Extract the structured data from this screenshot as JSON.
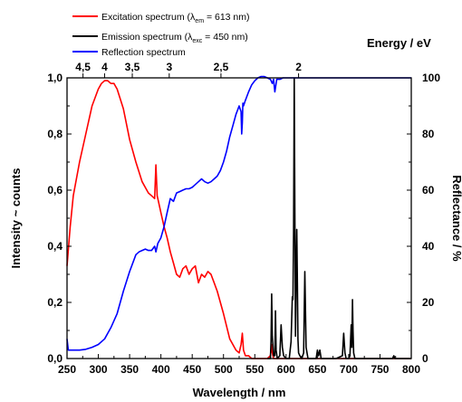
{
  "chart_data": {
    "type": "line",
    "xlabel": "Wavelength / nm",
    "ylabel_left": "Intensity ~ counts",
    "ylabel_right": "Reflectance / %",
    "top_axis_label": "Energy / eV",
    "xlim": [
      250,
      800
    ],
    "ylim_left": [
      0,
      1.0
    ],
    "ylim_right": [
      0,
      100
    ],
    "x_ticks": [
      "250",
      "300",
      "350",
      "400",
      "450",
      "500",
      "550",
      "600",
      "650",
      "700",
      "750",
      "800"
    ],
    "x_tick_values": [
      250,
      300,
      350,
      400,
      450,
      500,
      550,
      600,
      650,
      700,
      750,
      800
    ],
    "y_left_ticks": [
      "0,0",
      "0,2",
      "0,4",
      "0,6",
      "0,8",
      "1,0"
    ],
    "y_left_tick_values": [
      0,
      0.2,
      0.4,
      0.6,
      0.8,
      1.0
    ],
    "y_right_ticks": [
      "0",
      "20",
      "40",
      "60",
      "80",
      "100"
    ],
    "y_right_tick_values": [
      0,
      20,
      40,
      60,
      80,
      100
    ],
    "top_ticks": [
      {
        "label": "4,5",
        "ev": 4.5
      },
      {
        "label": "4",
        "ev": 4
      },
      {
        "label": "3,5",
        "ev": 3.5
      },
      {
        "label": "3",
        "ev": 3
      },
      {
        "label": "2,5",
        "ev": 2.5
      },
      {
        "label": "2",
        "ev": 2
      }
    ],
    "grid": false,
    "legend_position": "top-left",
    "series": [
      {
        "name": "Excitation spectrum (λem = 613 nm)",
        "legend_main": "Excitation spectrum (λ",
        "legend_sub": "em",
        "legend_tail": " = 613 nm)",
        "color": "#ff0000",
        "axis": "left",
        "x": [
          250,
          255,
          260,
          270,
          280,
          290,
          300,
          305,
          310,
          315,
          320,
          325,
          330,
          340,
          350,
          360,
          370,
          380,
          385,
          390,
          392,
          394,
          396,
          400,
          405,
          410,
          415,
          420,
          425,
          430,
          435,
          440,
          445,
          450,
          455,
          460,
          465,
          470,
          475,
          480,
          485,
          490,
          500,
          510,
          520,
          525,
          528,
          530,
          532,
          535,
          540,
          545,
          550,
          560,
          570,
          575,
          577,
          578,
          580,
          585,
          590,
          600,
          650,
          700,
          750,
          800
        ],
        "y": [
          0.33,
          0.47,
          0.58,
          0.7,
          0.8,
          0.9,
          0.96,
          0.98,
          0.99,
          0.99,
          0.98,
          0.98,
          0.96,
          0.89,
          0.78,
          0.7,
          0.63,
          0.59,
          0.58,
          0.57,
          0.69,
          0.58,
          0.56,
          0.52,
          0.47,
          0.43,
          0.38,
          0.34,
          0.3,
          0.29,
          0.32,
          0.33,
          0.3,
          0.32,
          0.33,
          0.27,
          0.3,
          0.29,
          0.31,
          0.3,
          0.27,
          0.24,
          0.16,
          0.07,
          0.03,
          0.02,
          0.05,
          0.09,
          0.03,
          0.01,
          0.01,
          0.0,
          0.0,
          0.0,
          0.0,
          0.01,
          0.05,
          0.02,
          0.0,
          0.0,
          0.0,
          0.0,
          0.0,
          0.0,
          0.0,
          0.0
        ]
      },
      {
        "name": "Emission spectrum (λexc = 450 nm)",
        "legend_main": "Emission spectrum (λ",
        "legend_sub": "exc",
        "legend_tail": " = 450 nm)",
        "color": "#000000",
        "axis": "left",
        "x": [
          570,
          575,
          576,
          577,
          578,
          580,
          582,
          583,
          584,
          586,
          590,
          592,
          594,
          596,
          600,
          605,
          608,
          610,
          611,
          612,
          613,
          614,
          615,
          616,
          617,
          618,
          619,
          620,
          622,
          625,
          628,
          630,
          632,
          635,
          640,
          648,
          650,
          652,
          654,
          656,
          660,
          680,
          690,
          692,
          694,
          696,
          700,
          702,
          704,
          705,
          706,
          707,
          708,
          710,
          720,
          740,
          770,
          772,
          774,
          780,
          800
        ],
        "y": [
          0.0,
          0.0,
          0.06,
          0.23,
          0.08,
          0.01,
          0.01,
          0.17,
          0.03,
          0.0,
          0.01,
          0.12,
          0.04,
          0.01,
          0.0,
          0.0,
          0.06,
          0.22,
          0.21,
          0.45,
          1.0,
          0.52,
          0.08,
          0.28,
          0.46,
          0.27,
          0.07,
          0.02,
          0.01,
          0.0,
          0.02,
          0.31,
          0.04,
          0.0,
          0.0,
          0.0,
          0.03,
          0.01,
          0.03,
          0.0,
          0.0,
          0.0,
          0.01,
          0.09,
          0.02,
          0.0,
          0.0,
          0.01,
          0.12,
          0.04,
          0.21,
          0.1,
          0.02,
          0.0,
          0.0,
          0.0,
          0.0,
          0.01,
          0.0,
          0.0,
          0.0
        ]
      },
      {
        "name": "Reflection spectrum",
        "color": "#0000ff",
        "axis": "right",
        "x": [
          250,
          252,
          255,
          260,
          270,
          280,
          290,
          300,
          310,
          320,
          330,
          340,
          350,
          360,
          365,
          370,
          375,
          380,
          385,
          390,
          392,
          395,
          400,
          405,
          410,
          415,
          420,
          425,
          430,
          435,
          440,
          445,
          450,
          455,
          460,
          465,
          470,
          475,
          480,
          485,
          490,
          495,
          500,
          505,
          510,
          515,
          520,
          525,
          528,
          529,
          530,
          531,
          532,
          535,
          540,
          545,
          550,
          555,
          560,
          565,
          570,
          575,
          578,
          580,
          582,
          585,
          590,
          595,
          600,
          610,
          615,
          620,
          640,
          680,
          720,
          760,
          800
        ],
        "y": [
          7,
          3,
          3,
          3,
          3,
          3.3,
          4,
          5,
          7,
          11,
          16,
          24,
          31,
          37,
          38,
          38.5,
          39,
          38.5,
          38.5,
          40,
          38,
          41,
          43,
          47,
          52,
          57,
          56,
          59,
          59.5,
          60,
          60.5,
          60.5,
          61,
          62,
          63,
          64,
          63,
          62.5,
          63,
          64,
          65,
          67,
          70,
          74,
          79,
          83,
          87,
          90,
          88,
          80,
          84,
          91,
          90,
          92,
          95,
          97.5,
          99,
          100,
          100.5,
          100.5,
          100,
          99.5,
          98,
          99.5,
          95,
          99.5,
          99.5,
          100,
          100,
          100,
          100,
          100,
          100,
          100,
          100,
          100,
          100
        ]
      }
    ]
  }
}
